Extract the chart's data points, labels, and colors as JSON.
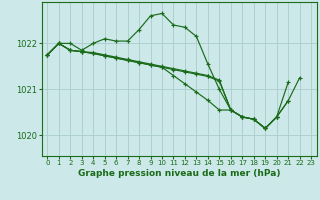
{
  "title": "Graphe pression niveau de la mer (hPa)",
  "background_color": "#cce8e8",
  "grid_color": "#aacccc",
  "line_color": "#1a6b1a",
  "xlim": [
    -0.5,
    23.5
  ],
  "ylim": [
    1019.55,
    1022.9
  ],
  "yticks": [
    1020,
    1021,
    1022
  ],
  "xticks": [
    0,
    1,
    2,
    3,
    4,
    5,
    6,
    7,
    8,
    9,
    10,
    11,
    12,
    13,
    14,
    15,
    16,
    17,
    18,
    19,
    20,
    21,
    22,
    23
  ],
  "series": [
    {
      "x": [
        0,
        1,
        2,
        3,
        4,
        5,
        6,
        7,
        8,
        9,
        10,
        11,
        12,
        13,
        14,
        15,
        16,
        17,
        18,
        19,
        20,
        21,
        22
      ],
      "y": [
        1021.75,
        1022.0,
        1022.0,
        1021.85,
        1022.0,
        1022.1,
        1022.05,
        1022.05,
        1022.3,
        1022.6,
        1022.65,
        1022.4,
        1022.35,
        1022.15,
        1021.55,
        1021.0,
        1020.55,
        1020.4,
        1020.35,
        1020.15,
        1020.4,
        1020.75,
        1021.25
      ]
    },
    {
      "x": [
        0,
        1,
        2,
        3,
        4,
        5,
        6,
        7,
        8,
        9,
        10,
        11,
        12,
        13,
        14,
        15,
        16,
        17,
        18,
        19,
        20,
        21
      ],
      "y": [
        1021.75,
        1022.0,
        1021.85,
        1021.82,
        1021.8,
        1021.75,
        1021.7,
        1021.65,
        1021.6,
        1021.55,
        1021.5,
        1021.45,
        1021.4,
        1021.35,
        1021.3,
        1021.2,
        1020.55,
        1020.4,
        1020.35,
        1020.15,
        1020.4,
        1020.75
      ]
    },
    {
      "x": [
        0,
        1,
        2,
        3,
        4,
        5,
        6,
        7,
        8,
        9,
        10,
        11,
        12,
        13,
        14,
        15,
        16,
        17,
        18,
        19,
        20,
        21
      ],
      "y": [
        1021.75,
        1022.0,
        1021.85,
        1021.82,
        1021.78,
        1021.73,
        1021.68,
        1021.63,
        1021.58,
        1021.53,
        1021.48,
        1021.43,
        1021.38,
        1021.33,
        1021.28,
        1021.18,
        1020.55,
        1020.4,
        1020.35,
        1020.15,
        1020.4,
        1021.15
      ]
    },
    {
      "x": [
        0,
        1,
        2,
        3,
        4,
        5,
        6,
        7,
        8,
        9,
        10,
        11,
        12,
        13,
        14,
        15,
        16,
        17,
        18,
        19,
        20
      ],
      "y": [
        1021.75,
        1022.0,
        1021.85,
        1021.82,
        1021.78,
        1021.73,
        1021.68,
        1021.63,
        1021.58,
        1021.53,
        1021.48,
        1021.3,
        1021.12,
        1020.94,
        1020.76,
        1020.55,
        1020.55,
        1020.4,
        1020.35,
        1020.15,
        1020.4
      ]
    }
  ]
}
